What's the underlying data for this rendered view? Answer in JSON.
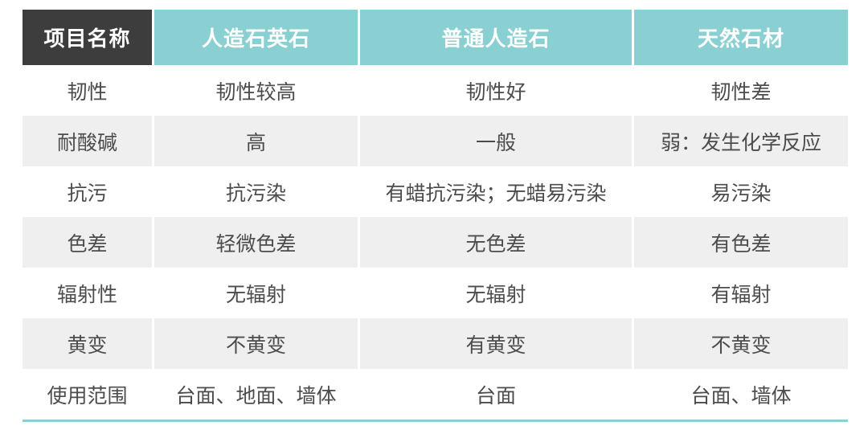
{
  "table": {
    "header": {
      "columns": [
        {
          "label": "项目名称"
        },
        {
          "label": "人造石英石"
        },
        {
          "label": "普通人造石"
        },
        {
          "label": "天然石材"
        }
      ]
    },
    "rows": [
      {
        "cells": [
          "韧性",
          "韧性较高",
          "韧性好",
          "韧性差"
        ]
      },
      {
        "cells": [
          "耐酸碱",
          "高",
          "一般",
          "弱：发生化学反应"
        ]
      },
      {
        "cells": [
          "抗污",
          "抗污染",
          "有蜡抗污染；无蜡易污染",
          "易污染"
        ]
      },
      {
        "cells": [
          "色差",
          "轻微色差",
          "无色差",
          "有色差"
        ]
      },
      {
        "cells": [
          "辐射性",
          "无辐射",
          "无辐射",
          "有辐射"
        ]
      },
      {
        "cells": [
          "黄变",
          "不黄变",
          "有黄变",
          "不黄变"
        ]
      },
      {
        "cells": [
          "使用范围",
          "台面、地面、墙体",
          "台面",
          "台面、墙体"
        ]
      }
    ],
    "colors": {
      "header_dark": "#3d3d3d",
      "header_teal": "#8ad0d2",
      "header_text": "#ffffff",
      "row_stripe": "#efefef",
      "body_text": "#4c4c4c",
      "bottom_rule": "#8ad0d2"
    }
  }
}
